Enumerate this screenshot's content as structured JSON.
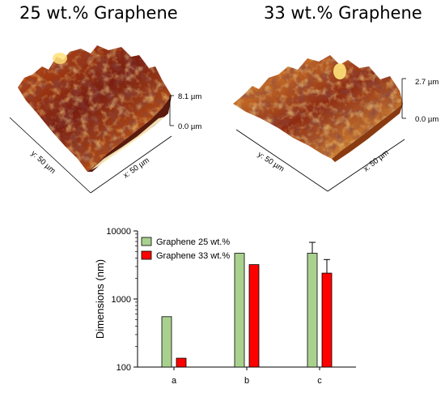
{
  "panels": {
    "left": {
      "title": "25 wt.% Graphene",
      "scale_top": "8.1 µm",
      "scale_bottom": "0.0 µm",
      "y_axis": "y: 50 µm",
      "x_axis": "x: 50 µm"
    },
    "right": {
      "title": "33 wt.% Graphene",
      "scale_top": "2.7 µm",
      "scale_bottom": "0.0 µm",
      "y_axis": "y: 50 µm",
      "x_axis": "x: 50 µm"
    }
  },
  "colors": {
    "series_25": "#a9d18e",
    "series_33": "#ff0000",
    "afm_dark": "#3a0f10",
    "afm_mid": "#b5400c",
    "afm_light": "#ffd04a"
  },
  "chart_data": {
    "type": "bar",
    "categories": [
      "a",
      "b",
      "c"
    ],
    "series": [
      {
        "name": "Graphene 25 wt.%",
        "values": [
          550,
          4700,
          4700
        ],
        "errors": [
          null,
          null,
          2100
        ]
      },
      {
        "name": "Graphene 33 wt.%",
        "values": [
          135,
          3200,
          2400
        ],
        "errors": [
          null,
          null,
          1400
        ]
      }
    ],
    "ylabel": "Dimensions (nm)",
    "ylim": [
      100,
      10000
    ],
    "yscale": "log",
    "yticks": [
      100,
      1000,
      10000
    ],
    "ytick_labels": [
      "100",
      "1000",
      "10000"
    ],
    "legend_position": "top-left",
    "grid": false
  }
}
